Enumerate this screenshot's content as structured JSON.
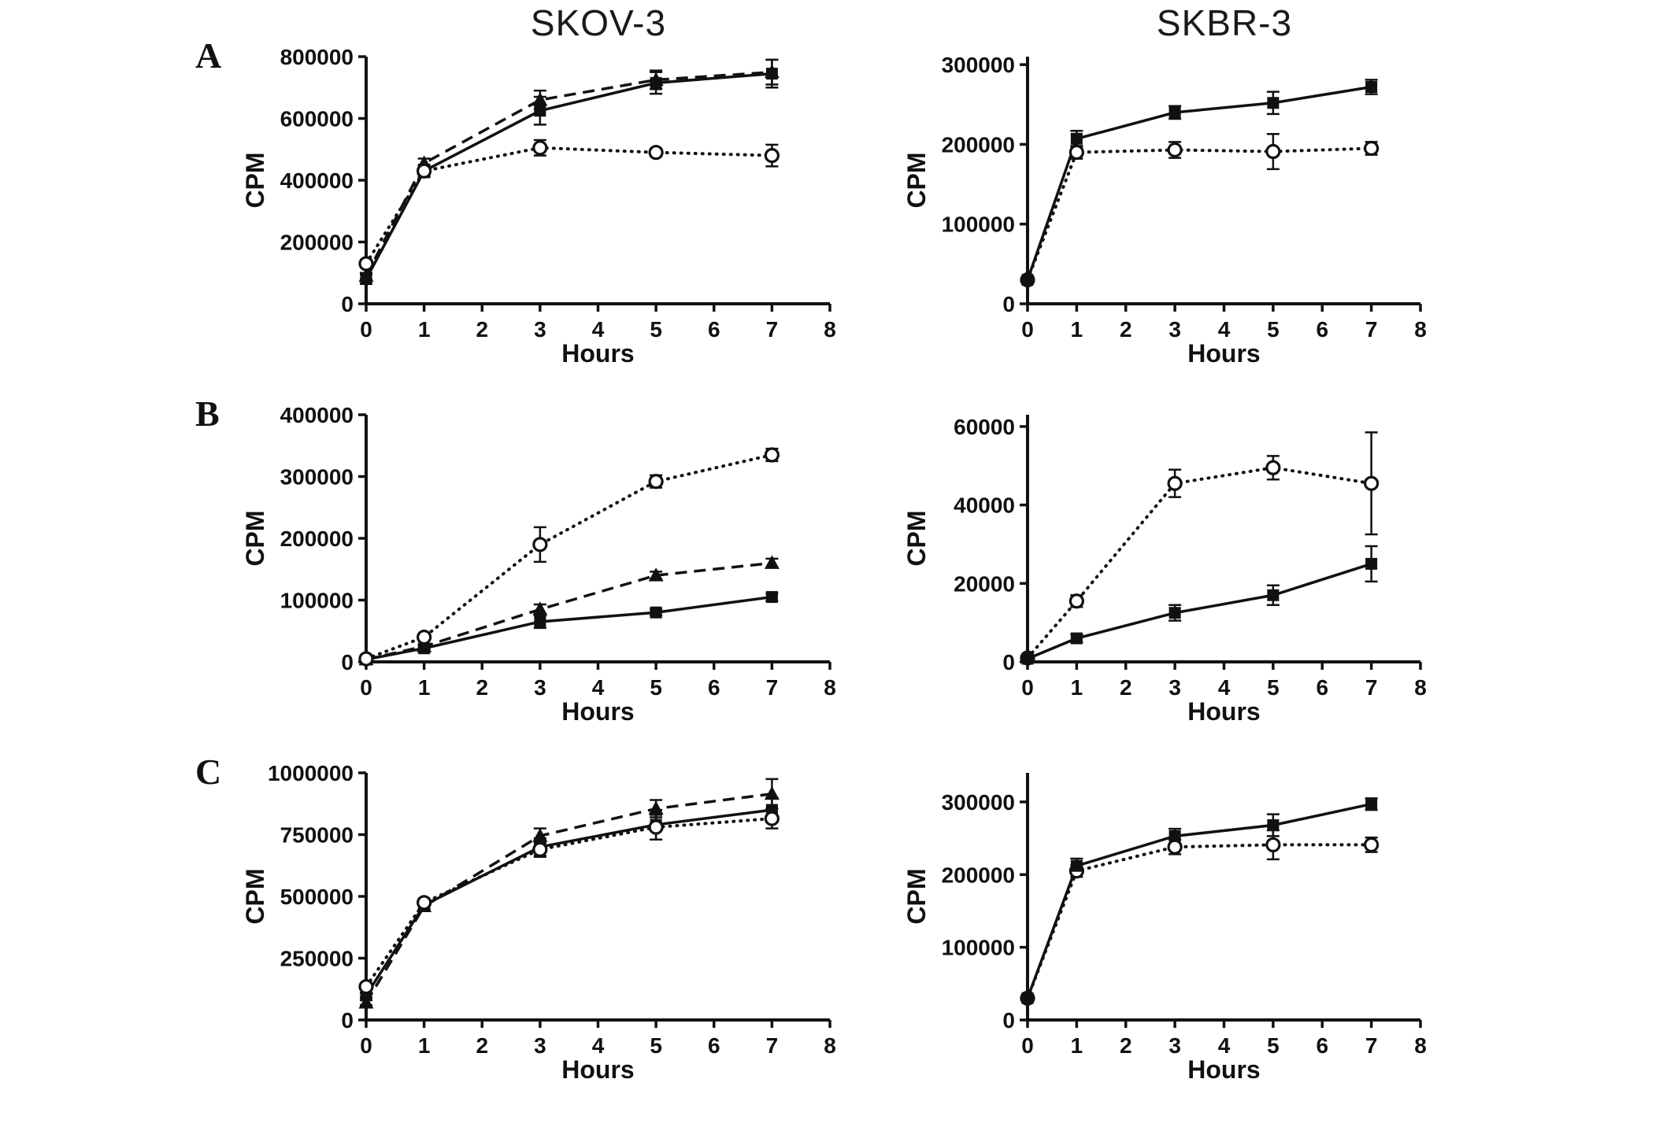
{
  "figure": {
    "column_titles": [
      "SKOV-3",
      "SKBR-3"
    ],
    "panel_labels": [
      "A",
      "B",
      "C"
    ]
  },
  "colors": {
    "ink": "#111111",
    "background": "#ffffff"
  },
  "chart_data": [
    {
      "type": "line",
      "panel": "A",
      "cell_line": "SKOV-3",
      "xlabel": "Hours",
      "ylabel": "CPM",
      "xlim": [
        0,
        8
      ],
      "xticks": [
        0,
        1,
        2,
        3,
        4,
        5,
        6,
        7,
        8
      ],
      "ylim": [
        0,
        800000
      ],
      "yticks": [
        0,
        200000,
        400000,
        600000,
        800000
      ],
      "x": [
        0,
        1,
        3,
        5,
        7
      ],
      "series": [
        {
          "name": "filled-square-solid",
          "marker": "filled-square",
          "line_style": "solid",
          "values": [
            80000,
            430000,
            625000,
            715000,
            745000
          ],
          "errors": [
            15000,
            20000,
            45000,
            35000,
            45000
          ]
        },
        {
          "name": "filled-triangle-dashed",
          "marker": "filled-triangle",
          "line_style": "dashed",
          "values": [
            90000,
            455000,
            660000,
            725000,
            750000
          ],
          "errors": [
            10000,
            15000,
            30000,
            30000,
            40000
          ]
        },
        {
          "name": "open-circle-dotted",
          "marker": "open-circle",
          "line_style": "dotted",
          "values": [
            130000,
            430000,
            505000,
            490000,
            480000
          ],
          "errors": [
            12000,
            15000,
            25000,
            12000,
            35000
          ]
        }
      ]
    },
    {
      "type": "line",
      "panel": "A",
      "cell_line": "SKBR-3",
      "xlabel": "Hours",
      "ylabel": "CPM",
      "xlim": [
        0,
        8
      ],
      "xticks": [
        0,
        1,
        2,
        3,
        4,
        5,
        6,
        7,
        8
      ],
      "ylim": [
        0,
        310000
      ],
      "yticks": [
        0,
        100000,
        200000,
        300000
      ],
      "x": [
        0,
        1,
        3,
        5,
        7
      ],
      "series": [
        {
          "name": "open-circle-dotted",
          "marker": "open-circle",
          "line_style": "dotted",
          "values": [
            30000,
            190000,
            193000,
            191000,
            195000
          ],
          "errors": [
            3000,
            8000,
            10000,
            22000,
            8000
          ]
        },
        {
          "name": "filled-square-solid",
          "marker": "filled-square",
          "line_style": "solid",
          "values": [
            30000,
            207000,
            240000,
            252000,
            272000
          ],
          "errors": [
            3000,
            10000,
            8000,
            14000,
            9000
          ]
        }
      ]
    },
    {
      "type": "line",
      "panel": "B",
      "cell_line": "SKOV-3",
      "xlabel": "Hours",
      "ylabel": "CPM",
      "xlim": [
        0,
        8
      ],
      "xticks": [
        0,
        1,
        2,
        3,
        4,
        5,
        6,
        7,
        8
      ],
      "ylim": [
        0,
        400000
      ],
      "yticks": [
        0,
        100000,
        200000,
        300000,
        400000
      ],
      "x": [
        0,
        1,
        3,
        5,
        7
      ],
      "series": [
        {
          "name": "filled-square-solid",
          "marker": "filled-square",
          "line_style": "solid",
          "values": [
            4000,
            22000,
            65000,
            80000,
            105000
          ],
          "errors": [
            2000,
            3000,
            10000,
            5000,
            6000
          ]
        },
        {
          "name": "filled-triangle-dashed",
          "marker": "filled-triangle",
          "line_style": "dashed",
          "values": [
            4000,
            25000,
            85000,
            140000,
            160000
          ],
          "errors": [
            2000,
            3000,
            8000,
            6000,
            7000
          ]
        },
        {
          "name": "open-circle-dotted",
          "marker": "open-circle",
          "line_style": "dotted",
          "values": [
            5000,
            40000,
            190000,
            292000,
            335000
          ],
          "errors": [
            2000,
            4000,
            28000,
            10000,
            10000
          ]
        }
      ]
    },
    {
      "type": "line",
      "panel": "B",
      "cell_line": "SKBR-3",
      "xlabel": "Hours",
      "ylabel": "CPM",
      "xlim": [
        0,
        8
      ],
      "xticks": [
        0,
        1,
        2,
        3,
        4,
        5,
        6,
        7,
        8
      ],
      "ylim": [
        0,
        63000
      ],
      "yticks": [
        0,
        20000,
        40000,
        60000
      ],
      "x": [
        0,
        1,
        3,
        5,
        7
      ],
      "series": [
        {
          "name": "open-circle-dotted",
          "marker": "open-circle",
          "line_style": "dotted",
          "values": [
            1000,
            15500,
            45500,
            49500,
            45500
          ],
          "errors": [
            400,
            1500,
            3500,
            3000,
            13000
          ]
        },
        {
          "name": "filled-square-solid",
          "marker": "filled-square",
          "line_style": "solid",
          "values": [
            800,
            6000,
            12500,
            17000,
            25000
          ],
          "errors": [
            400,
            1000,
            2000,
            2500,
            4500
          ]
        }
      ]
    },
    {
      "type": "line",
      "panel": "C",
      "cell_line": "SKOV-3",
      "xlabel": "Hours",
      "ylabel": "CPM",
      "xlim": [
        0,
        8
      ],
      "xticks": [
        0,
        1,
        2,
        3,
        4,
        5,
        6,
        7,
        8
      ],
      "ylim": [
        0,
        1000000
      ],
      "yticks": [
        0,
        250000,
        500000,
        750000,
        1000000
      ],
      "x": [
        0,
        1,
        3,
        5,
        7
      ],
      "series": [
        {
          "name": "filled-square-solid",
          "marker": "filled-square",
          "line_style": "solid",
          "values": [
            100000,
            465000,
            700000,
            790000,
            850000
          ],
          "errors": [
            10000,
            15000,
            35000,
            60000,
            50000
          ]
        },
        {
          "name": "filled-triangle-dashed",
          "marker": "filled-triangle",
          "line_style": "dashed",
          "values": [
            70000,
            460000,
            745000,
            855000,
            915000
          ],
          "errors": [
            10000,
            15000,
            30000,
            35000,
            60000
          ]
        },
        {
          "name": "open-circle-dotted",
          "marker": "open-circle",
          "line_style": "dotted",
          "values": [
            135000,
            475000,
            690000,
            780000,
            815000
          ],
          "errors": [
            12000,
            15000,
            30000,
            50000,
            40000
          ]
        }
      ]
    },
    {
      "type": "line",
      "panel": "C",
      "cell_line": "SKBR-3",
      "xlabel": "Hours",
      "ylabel": "CPM",
      "xlim": [
        0,
        8
      ],
      "xticks": [
        0,
        1,
        2,
        3,
        4,
        5,
        6,
        7,
        8
      ],
      "ylim": [
        0,
        340000
      ],
      "yticks": [
        0,
        100000,
        200000,
        300000
      ],
      "x": [
        0,
        1,
        3,
        5,
        7
      ],
      "series": [
        {
          "name": "open-circle-dotted",
          "marker": "open-circle",
          "line_style": "dotted",
          "values": [
            30000,
            205000,
            238000,
            241000,
            241000
          ],
          "errors": [
            2000,
            8000,
            10000,
            20000,
            10000
          ]
        },
        {
          "name": "filled-square-solid",
          "marker": "filled-square",
          "line_style": "solid",
          "values": [
            30000,
            212000,
            253000,
            268000,
            297000
          ],
          "errors": [
            2000,
            10000,
            10000,
            15000,
            8000
          ]
        }
      ]
    }
  ]
}
